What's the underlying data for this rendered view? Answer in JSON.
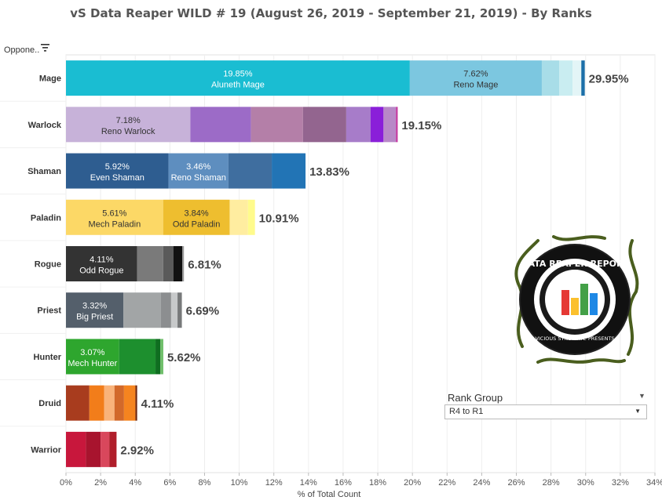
{
  "title": "vS Data Reaper WILD # 19 (August 26, 2019 - September 21, 2019) - By Ranks",
  "header": {
    "column_label": "Oppone.."
  },
  "icons": {
    "sort": "sort-lines-icon",
    "dropdown": "caret-down-icon"
  },
  "filter": {
    "title": "Rank Group",
    "value": "R4 to R1"
  },
  "logo_text": {
    "main": "DATA REAPER REPORT",
    "sub": "VICIOUS SYNDICATE PRESENTS"
  },
  "chart_data": {
    "type": "bar",
    "orientation": "horizontal",
    "stacked": true,
    "xlabel": "% of Total Count",
    "xlim": [
      0,
      34
    ],
    "xticks": [
      "0%",
      "2%",
      "4%",
      "6%",
      "8%",
      "10%",
      "12%",
      "14%",
      "16%",
      "18%",
      "20%",
      "22%",
      "24%",
      "26%",
      "28%",
      "30%",
      "32%",
      "34%"
    ],
    "grid": true,
    "categories": [
      {
        "name": "Mage",
        "total": "29.95%",
        "segments": [
          {
            "value": 19.85,
            "label": "19.85%",
            "archetype": "Aluneth Mage",
            "color": "#1ABDD2",
            "text_color": "#ffffff"
          },
          {
            "value": 7.62,
            "label": "7.62%",
            "archetype": "Reno Mage",
            "color": "#7CC7E0",
            "text_color": "#333333"
          },
          {
            "value": 1.0,
            "color": "#A8DDE8"
          },
          {
            "value": 0.78,
            "color": "#C9EDF1"
          },
          {
            "value": 0.5,
            "color": "#E3F5F7"
          },
          {
            "value": 0.2,
            "color": "#1C6FA8"
          }
        ]
      },
      {
        "name": "Warlock",
        "total": "19.15%",
        "segments": [
          {
            "value": 7.18,
            "label": "7.18%",
            "archetype": "Reno Warlock",
            "color": "#C7B2D9",
            "text_color": "#333333"
          },
          {
            "value": 3.5,
            "color": "#9C6BC7"
          },
          {
            "value": 3.0,
            "color": "#B47FA8"
          },
          {
            "value": 2.5,
            "color": "#93658F"
          },
          {
            "value": 1.4,
            "color": "#A77CC9"
          },
          {
            "value": 0.75,
            "color": "#8A1FD9"
          },
          {
            "value": 0.72,
            "color": "#B888C7"
          },
          {
            "value": 0.1,
            "color": "#C3359E"
          }
        ]
      },
      {
        "name": "Shaman",
        "total": "13.83%",
        "segments": [
          {
            "value": 5.92,
            "label": "5.92%",
            "archetype": "Even Shaman",
            "color": "#2E5D90",
            "text_color": "#ffffff"
          },
          {
            "value": 3.46,
            "label": "3.46%",
            "archetype": "Reno Shaman",
            "color": "#5E8EBF",
            "text_color": "#ffffff"
          },
          {
            "value": 2.5,
            "color": "#3F6E9F"
          },
          {
            "value": 1.95,
            "color": "#2274B5"
          }
        ]
      },
      {
        "name": "Paladin",
        "total": "10.91%",
        "segments": [
          {
            "value": 5.61,
            "label": "5.61%",
            "archetype": "Mech Paladin",
            "color": "#FCD866",
            "text_color": "#333333"
          },
          {
            "value": 3.84,
            "label": "3.84%",
            "archetype": "Odd Paladin",
            "color": "#EEBE2F",
            "text_color": "#333333"
          },
          {
            "value": 1.06,
            "color": "#FFEDA0"
          },
          {
            "value": 0.4,
            "color": "#FFFB8C"
          }
        ]
      },
      {
        "name": "Rogue",
        "total": "6.81%",
        "segments": [
          {
            "value": 4.11,
            "label": "4.11%",
            "archetype": "Odd Rogue",
            "color": "#333333",
            "text_color": "#ffffff"
          },
          {
            "value": 1.5,
            "color": "#7A7A7A"
          },
          {
            "value": 0.6,
            "color": "#5A5A5A"
          },
          {
            "value": 0.5,
            "color": "#111111"
          },
          {
            "value": 0.1,
            "color": "#999999"
          }
        ]
      },
      {
        "name": "Priest",
        "total": "6.69%",
        "segments": [
          {
            "value": 3.32,
            "label": "3.32%",
            "archetype": "Big Priest",
            "color": "#545F6B",
            "text_color": "#ffffff"
          },
          {
            "value": 2.15,
            "color": "#A2A5A6"
          },
          {
            "value": 0.6,
            "color": "#8C8E90"
          },
          {
            "value": 0.37,
            "color": "#C7C9CA"
          },
          {
            "value": 0.25,
            "color": "#77797A"
          }
        ]
      },
      {
        "name": "Hunter",
        "total": "5.62%",
        "segments": [
          {
            "value": 3.07,
            "label": "3.07%",
            "archetype": "Mech Hunter",
            "color": "#2EA62E",
            "text_color": "#ffffff"
          },
          {
            "value": 2.1,
            "color": "#1D8F2E"
          },
          {
            "value": 0.28,
            "color": "#0F6E20"
          },
          {
            "value": 0.17,
            "color": "#6FBF6A"
          }
        ]
      },
      {
        "name": "Druid",
        "total": "4.11%",
        "segments": [
          {
            "value": 1.35,
            "color": "#A83C1E"
          },
          {
            "value": 0.85,
            "color": "#F27D1A"
          },
          {
            "value": 0.6,
            "color": "#F9B37A"
          },
          {
            "value": 0.55,
            "color": "#D2692A"
          },
          {
            "value": 0.66,
            "color": "#F5841F"
          },
          {
            "value": 0.1,
            "color": "#6E2A14"
          }
        ]
      },
      {
        "name": "Warrior",
        "total": "2.92%",
        "segments": [
          {
            "value": 1.15,
            "color": "#C8173C"
          },
          {
            "value": 0.85,
            "color": "#A8142E"
          },
          {
            "value": 0.5,
            "color": "#D9475C"
          },
          {
            "value": 0.42,
            "color": "#B01E2B"
          }
        ]
      }
    ]
  }
}
